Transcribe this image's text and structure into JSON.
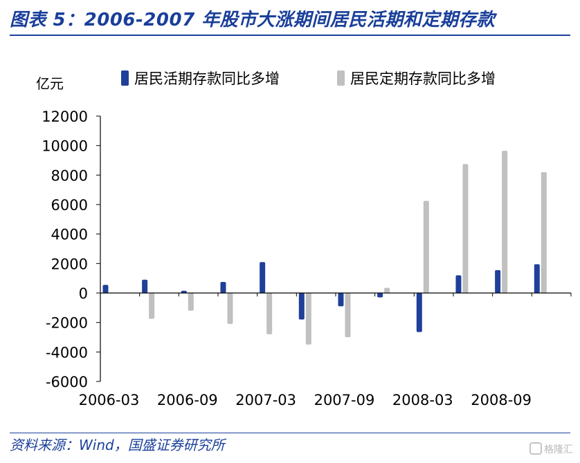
{
  "header": {
    "title": "图表 5：2006-2007 年股市大涨期间居民活期和定期存款"
  },
  "footer": {
    "source": "资料来源：Wind，国盛证券研究所",
    "watermark": "格隆汇"
  },
  "colors": {
    "accent": "#1a3f9a",
    "series_demand": "#1f3f99",
    "series_time": "#c0c0c0"
  },
  "chart_data": {
    "type": "bar",
    "title": "",
    "ylabel": "亿元",
    "xlabel": "",
    "ylim": [
      -6000,
      12000
    ],
    "yticks": [
      12000,
      10000,
      8000,
      6000,
      4000,
      2000,
      0,
      -2000,
      -4000,
      -6000
    ],
    "x_tick_labels": [
      "2006-03",
      "2006-09",
      "2007-03",
      "2007-09",
      "2008-03",
      "2008-09"
    ],
    "legend_position": "top",
    "categories": [
      "2006-03",
      "2006-06",
      "2006-09",
      "2006-12",
      "2007-03",
      "2007-06",
      "2007-09",
      "2007-12",
      "2008-03",
      "2008-06",
      "2008-09",
      "2008-12"
    ],
    "series": [
      {
        "name": "居民活期存款同比多增",
        "color": "#1f3f99",
        "values": [
          550,
          900,
          150,
          750,
          2100,
          -1800,
          -900,
          -300,
          -2650,
          1200,
          1550,
          1950
        ]
      },
      {
        "name": "居民定期存款同比多增",
        "color": "#c0c0c0",
        "values": [
          0,
          -1750,
          -1200,
          -2100,
          -2800,
          -3500,
          -3000,
          350,
          6250,
          8750,
          9650,
          8200
        ]
      }
    ]
  }
}
